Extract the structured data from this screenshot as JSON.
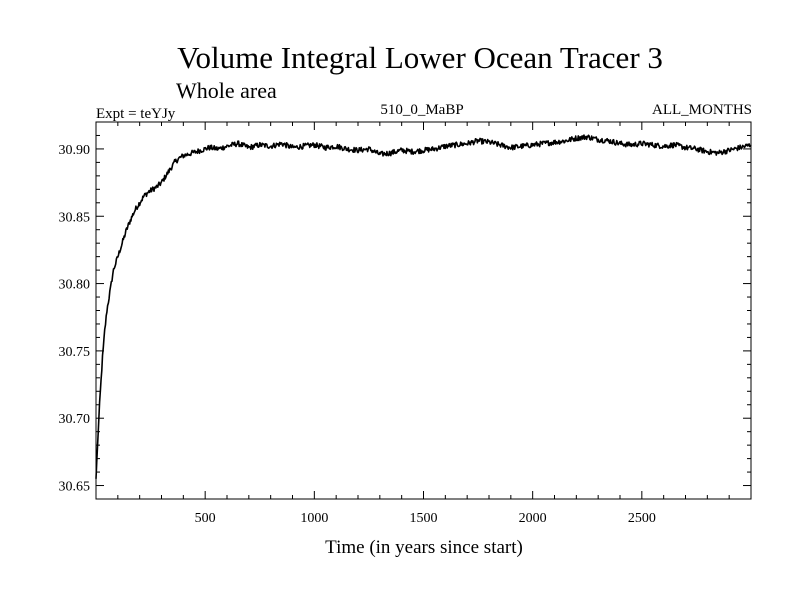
{
  "chart_data": {
    "type": "line",
    "title": "Volume Integral Lower Ocean Tracer 3",
    "subtitle": "Whole area",
    "annotations": {
      "left": "Expt = teYJy",
      "center": "510_0_MaBP",
      "right": "ALL_MONTHS"
    },
    "xlabel": "Time (in years since start)",
    "ylabel": "",
    "xlim": [
      0,
      3000
    ],
    "ylim": [
      30.64,
      30.92
    ],
    "xticks": [
      500,
      1000,
      1500,
      2000,
      2500
    ],
    "xtick_labels": [
      "500",
      "1000",
      "1500",
      "2000",
      "2500"
    ],
    "yticks": [
      30.65,
      30.7,
      30.75,
      30.8,
      30.85,
      30.9
    ],
    "ytick_labels": [
      "30.65",
      "30.70",
      "30.75",
      "30.80",
      "30.85",
      "30.90"
    ],
    "grid": false,
    "series": [
      {
        "name": "Volume Integral Lower Ocean Tracer 3",
        "color": "#000000",
        "x": [
          0,
          10,
          20,
          30,
          40,
          50,
          60,
          70,
          80,
          90,
          100,
          120,
          140,
          160,
          180,
          200,
          220,
          240,
          260,
          280,
          300,
          320,
          340,
          360,
          380,
          400,
          440,
          480,
          520,
          560,
          600,
          650,
          700,
          750,
          800,
          850,
          900,
          950,
          1000,
          1050,
          1100,
          1150,
          1200,
          1250,
          1300,
          1350,
          1400,
          1450,
          1500,
          1550,
          1600,
          1650,
          1700,
          1750,
          1800,
          1850,
          1900,
          1950,
          2000,
          2050,
          2100,
          2150,
          2200,
          2250,
          2300,
          2350,
          2400,
          2450,
          2500,
          2550,
          2600,
          2650,
          2700,
          2750,
          2800,
          2850,
          2900,
          2950,
          3000
        ],
        "values": [
          30.655,
          30.69,
          30.72,
          30.745,
          30.765,
          30.78,
          30.79,
          30.8,
          30.81,
          30.815,
          30.82,
          30.83,
          30.84,
          30.848,
          30.855,
          30.86,
          30.865,
          30.868,
          30.87,
          30.872,
          30.875,
          30.88,
          30.885,
          30.89,
          30.893,
          30.895,
          30.897,
          30.899,
          30.901,
          30.9,
          30.902,
          30.904,
          30.901,
          30.903,
          30.902,
          30.904,
          30.901,
          30.902,
          30.903,
          30.901,
          30.902,
          30.9,
          30.899,
          30.9,
          30.896,
          30.897,
          30.899,
          30.898,
          30.899,
          30.9,
          30.902,
          30.903,
          30.904,
          30.906,
          30.905,
          30.903,
          30.901,
          30.902,
          30.903,
          30.904,
          30.905,
          30.906,
          30.908,
          30.909,
          30.907,
          30.906,
          30.904,
          30.903,
          30.904,
          30.903,
          30.902,
          30.903,
          30.901,
          30.9,
          30.898,
          30.897,
          30.899,
          30.901,
          30.903
        ]
      }
    ]
  }
}
